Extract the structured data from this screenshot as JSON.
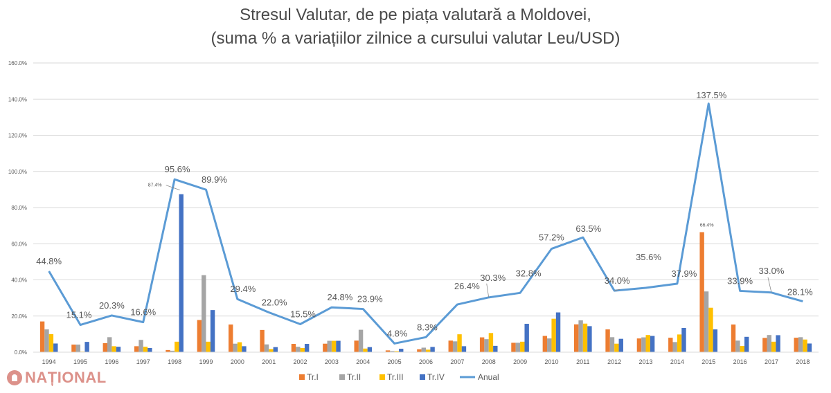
{
  "colors": {
    "tr1": "#ED7D31",
    "tr2": "#A5A5A5",
    "tr3": "#FFC000",
    "tr4": "#4472C4",
    "anual": "#5B9BD5",
    "grid": "#D9D9D9",
    "text": "#595959"
  },
  "watermark": {
    "text": "NAȚIONAL"
  },
  "chart_data": {
    "type": "bar",
    "title": "Stresul Valutar, de pe piața valutară a Moldovei,",
    "subtitle": "(suma % a variațiilor zilnice a cursului valutar Leu/USD)",
    "xlabel": "",
    "ylabel": "",
    "ylim": [
      0,
      160
    ],
    "yticks": [
      "0.0%",
      "20.0%",
      "40.0%",
      "60.0%",
      "80.0%",
      "100.0%",
      "120.0%",
      "140.0%",
      "160.0%"
    ],
    "grid": true,
    "legend_position": "bottom",
    "categories": [
      "1994",
      "1995",
      "1996",
      "1997",
      "1998",
      "1999",
      "2000",
      "2001",
      "2002",
      "2003",
      "2004",
      "2005",
      "2006",
      "2007",
      "2008",
      "2009",
      "2010",
      "2011",
      "2012",
      "2013",
      "2014",
      "2015",
      "2016",
      "2017",
      "2018"
    ],
    "series": [
      {
        "name": "Tr.I",
        "type": "bar",
        "values": [
          17,
          4.2,
          5,
          3.3,
          1.2,
          17.8,
          15.3,
          12.3,
          4.6,
          4.7,
          6.4,
          1,
          1.6,
          6.4,
          8.2,
          5.2,
          9,
          15.4,
          12.6,
          7.6,
          8,
          66.4,
          15.3,
          7.9,
          8
        ]
      },
      {
        "name": "Tr.II",
        "type": "bar",
        "values": [
          12.6,
          4.2,
          8.3,
          6.8,
          0.8,
          42.6,
          4.7,
          4.3,
          3,
          6.3,
          12.4,
          0.6,
          2.5,
          6,
          7.2,
          5.2,
          7.6,
          17.6,
          8.3,
          8.2,
          5.6,
          33.6,
          6.4,
          9.5,
          8.3
        ]
      },
      {
        "name": "Tr.III",
        "type": "bar",
        "values": [
          10,
          0.3,
          3.3,
          3,
          5.8,
          5.8,
          5.5,
          1.7,
          2.3,
          6.3,
          2,
          0.5,
          1.4,
          9.9,
          10.6,
          5.8,
          18.5,
          15.8,
          4.7,
          9.5,
          9.8,
          24.6,
          3.4,
          5.8,
          7
        ]
      },
      {
        "name": "Tr.IV",
        "type": "bar",
        "values": [
          4.8,
          5.7,
          3,
          2.3,
          87.4,
          23.3,
          3.3,
          2.8,
          4.6,
          6.3,
          2.8,
          1.9,
          2.9,
          3.3,
          3.5,
          15.7,
          22,
          14.4,
          7.4,
          9,
          13.4,
          12.6,
          8.5,
          9.4,
          4.8
        ]
      },
      {
        "name": "Anual",
        "type": "line",
        "values": [
          44.8,
          15.1,
          20.3,
          16.6,
          95.6,
          89.9,
          29.4,
          22,
          15.5,
          24.8,
          23.9,
          4.8,
          8.3,
          26.4,
          30.3,
          32.8,
          57.2,
          63.5,
          34,
          35.6,
          37.9,
          137.5,
          33.9,
          33,
          28.1
        ]
      }
    ],
    "line_labels": [
      "44.8%",
      "15.1%",
      "20.3%",
      "16.6%",
      "95.6%",
      "89.9%",
      "29.4%",
      "22.0%",
      "15.5%",
      "24.8%",
      "23.9%",
      "4.8%",
      "8.3%",
      "26.4%",
      "30.3%",
      "32.8%",
      "57.2%",
      "63.5%",
      "34.0%",
      "35.6%",
      "37.9%",
      "137.5%",
      "33.9%",
      "33.0%",
      "28.1%"
    ],
    "annotations": [
      {
        "text": "87.4%",
        "category": "1998",
        "series": "Tr.IV",
        "value": 87.4
      },
      {
        "text": "66.4%",
        "category": "2015",
        "series": "Tr.I",
        "value": 66.4
      }
    ]
  }
}
